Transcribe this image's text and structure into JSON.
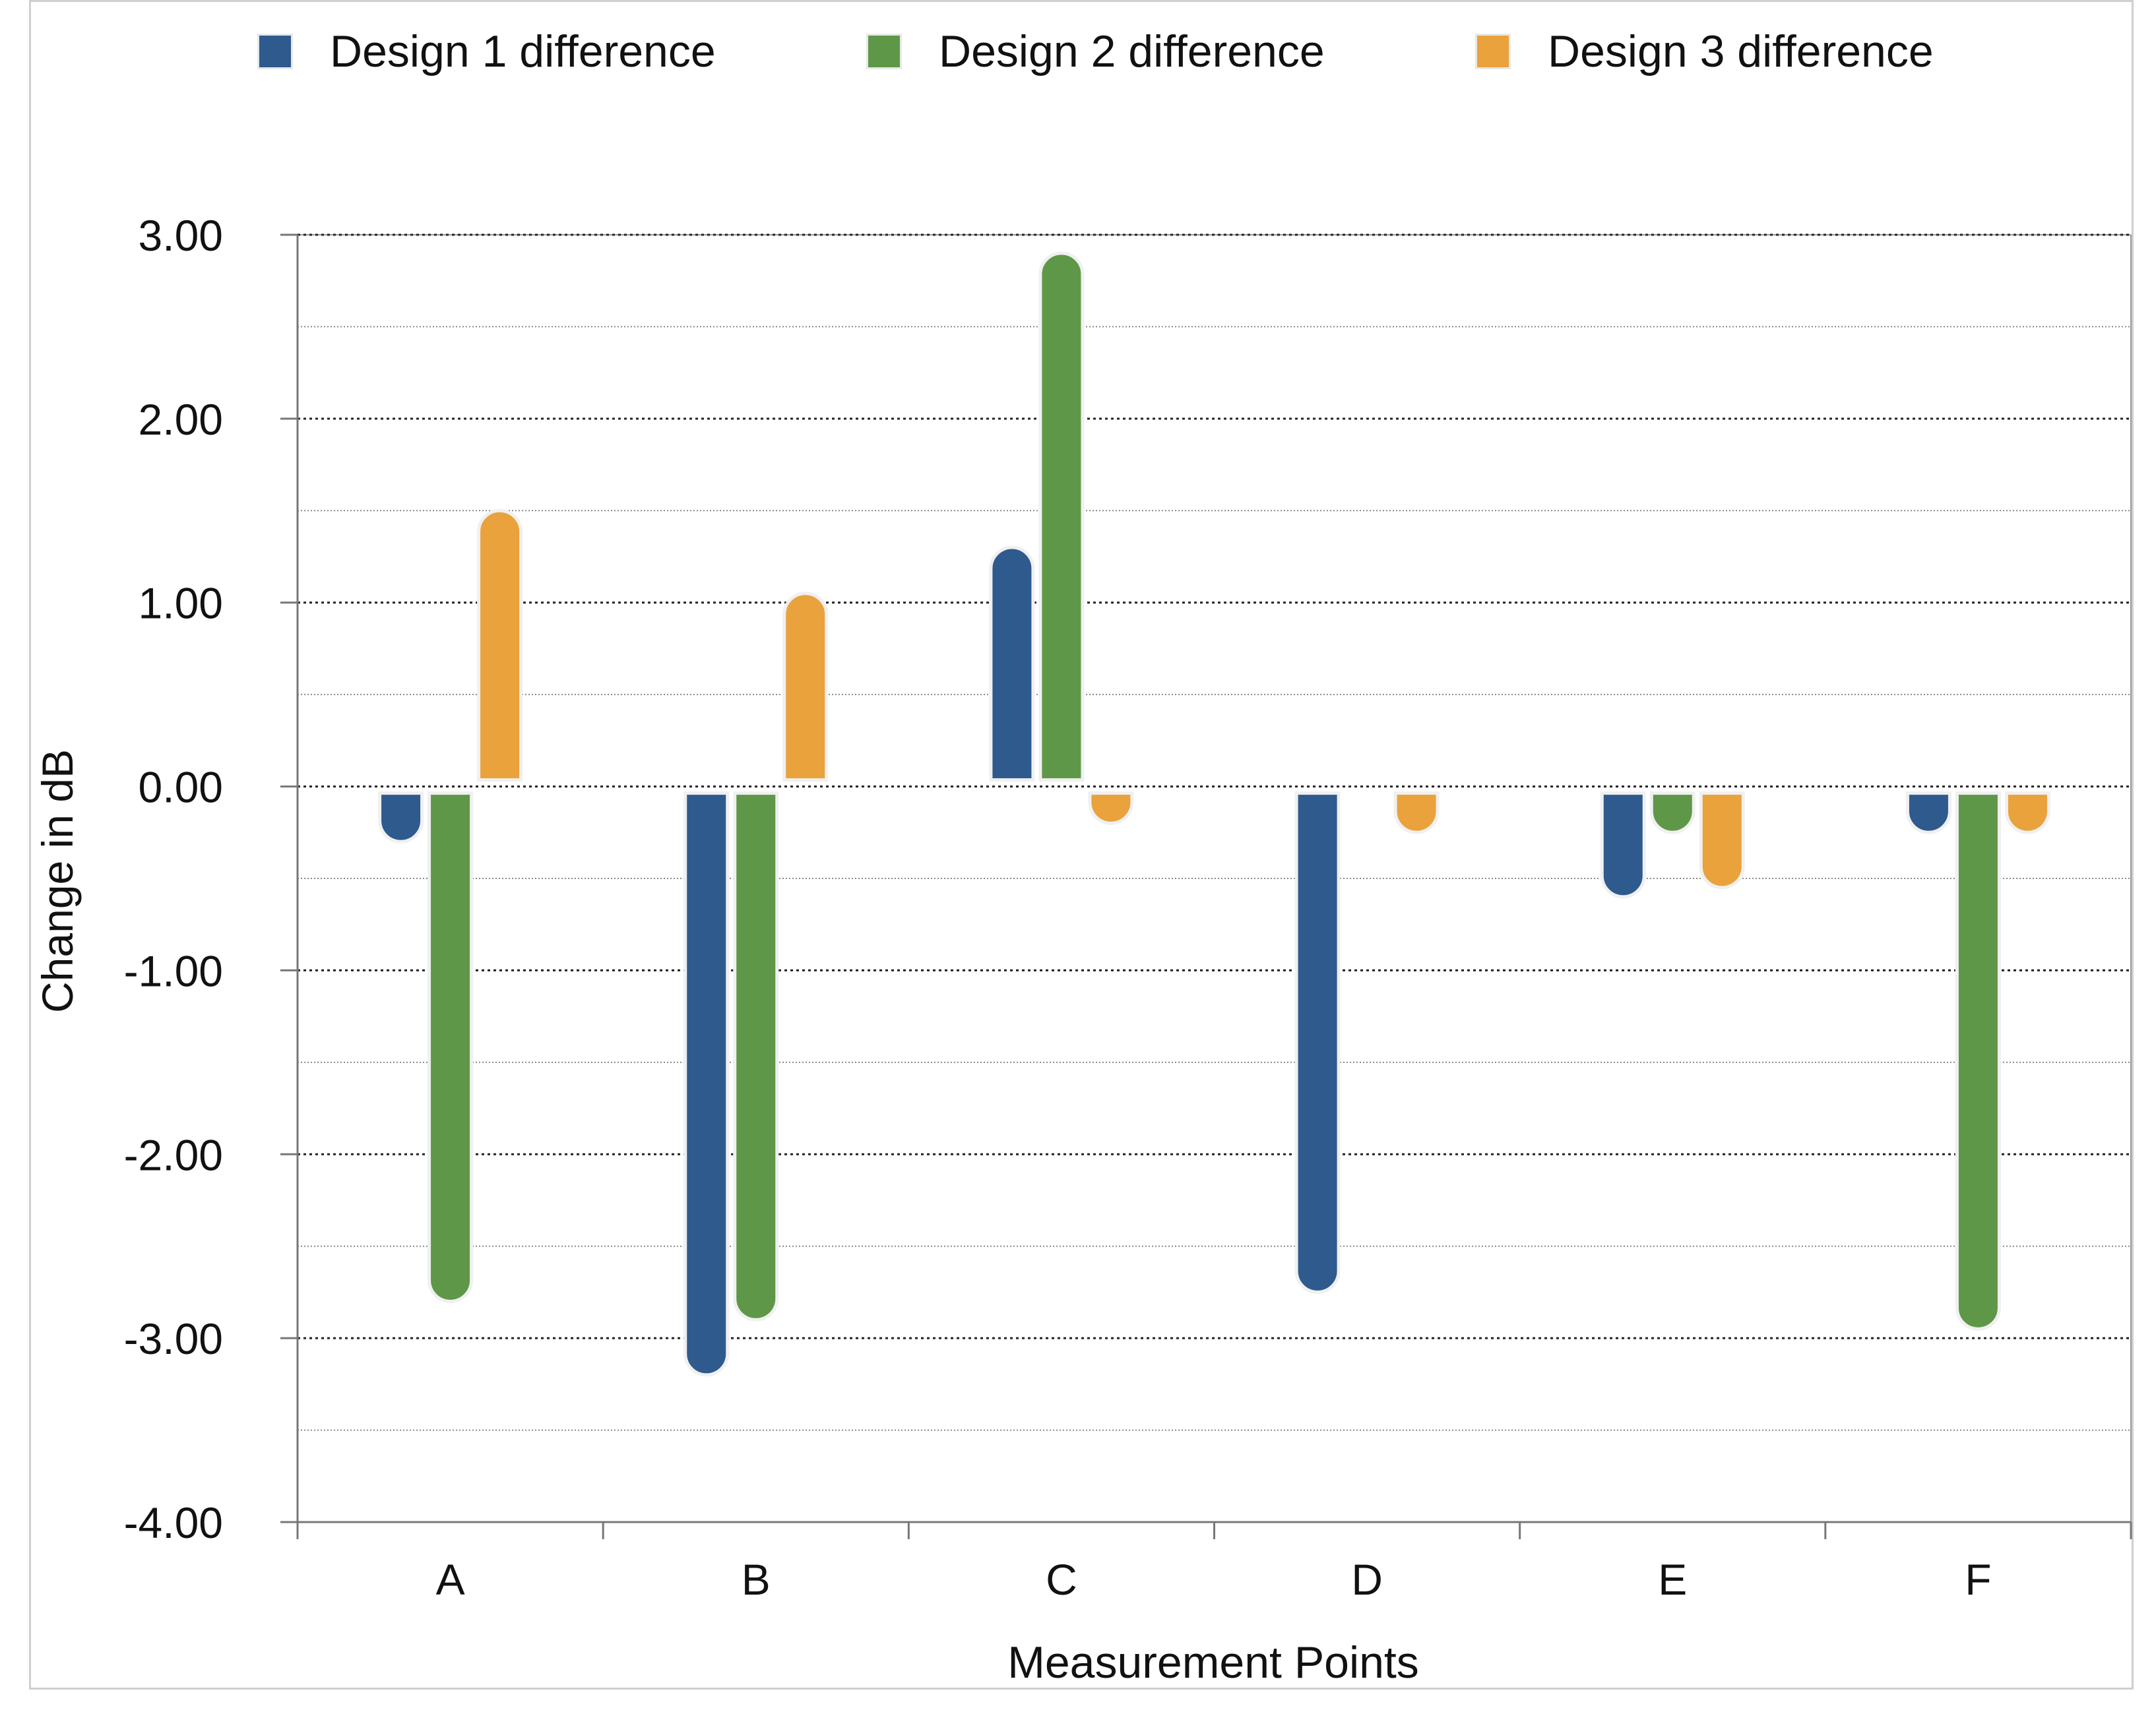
{
  "chart_data": {
    "type": "bar",
    "title": "",
    "xlabel": "Measurement Points",
    "ylabel": "Change in dB",
    "categories": [
      "A",
      "B",
      "C",
      "D",
      "E",
      "F"
    ],
    "ylim": [
      -4,
      3
    ],
    "yticks": [
      3,
      2,
      1,
      0,
      -1,
      -2,
      -3,
      -4
    ],
    "ytick_labels": [
      "3.00",
      "2.00",
      "1.00",
      "0.00",
      "-1.00",
      "-2.00",
      "-3.00",
      "-4.00"
    ],
    "grid": true,
    "legend_position": "top",
    "series": [
      {
        "name": "Design 1 difference",
        "color": "#2e5a8e",
        "values": [
          -0.3,
          -3.2,
          1.3,
          -2.75,
          -0.6,
          -0.25
        ]
      },
      {
        "name": "Design 2 difference",
        "color": "#5f9748",
        "values": [
          -2.8,
          -2.9,
          2.9,
          0.0,
          -0.25,
          -2.95
        ]
      },
      {
        "name": "Design 3 difference",
        "color": "#e9a23c",
        "values": [
          1.5,
          1.05,
          -0.2,
          -0.25,
          -0.55,
          -0.25
        ]
      }
    ]
  }
}
